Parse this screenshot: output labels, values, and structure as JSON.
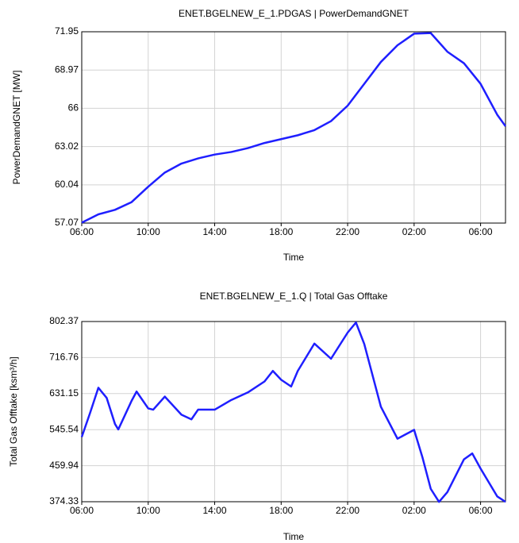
{
  "chart_data": [
    {
      "type": "line",
      "title": "ENET.BGELNEW_E_1.PDGAS | PowerDemandGNET",
      "x_label": "Time",
      "y_label": "PowerDemandGNET [MW]",
      "x": [
        0,
        1,
        2,
        3,
        4,
        5,
        6,
        7,
        8,
        9,
        10,
        11,
        12,
        13,
        14,
        15,
        16,
        17,
        18,
        19,
        20,
        21,
        22,
        23,
        24,
        25,
        25.5
      ],
      "series": [
        {
          "name": "PowerDemandGNET",
          "color": "#1f1fff",
          "values": [
            57.1,
            57.75,
            58.1,
            58.7,
            59.9,
            61.0,
            61.7,
            62.1,
            62.4,
            62.6,
            62.9,
            63.3,
            63.6,
            63.9,
            64.3,
            65.0,
            66.2,
            67.9,
            69.6,
            70.9,
            71.8,
            71.85,
            70.4,
            69.5,
            67.9,
            65.5,
            64.6
          ]
        }
      ],
      "xlim": [
        0,
        25.5
      ],
      "xticks": [
        {
          "value": 0,
          "label": "06:00"
        },
        {
          "value": 4,
          "label": "10:00"
        },
        {
          "value": 8,
          "label": "14:00"
        },
        {
          "value": 12,
          "label": "18:00"
        },
        {
          "value": 16,
          "label": "22:00"
        },
        {
          "value": 20,
          "label": "02:00"
        },
        {
          "value": 24,
          "label": "06:00"
        }
      ],
      "ylim": [
        57.07,
        71.95
      ],
      "yticks": [
        57.07,
        60.04,
        63.02,
        66,
        68.97,
        71.95
      ],
      "grid": true
    },
    {
      "type": "line",
      "title": "ENET.BGELNEW_E_1.Q | Total Gas Offtake",
      "x_label": "Time",
      "y_label": "Total Gas Offtake [ksm³/h]",
      "x": [
        0,
        0.5,
        1,
        1.5,
        2,
        2.2,
        3,
        3.3,
        4,
        4.3,
        5,
        6,
        6.6,
        7,
        8,
        9,
        10,
        11,
        11.5,
        12,
        12.6,
        13,
        14,
        15,
        16,
        16.5,
        17,
        18,
        19,
        20,
        20.5,
        21,
        21.5,
        22,
        23,
        23.5,
        24,
        25,
        25.5
      ],
      "series": [
        {
          "name": "Total Gas Offtake",
          "color": "#1f1fff",
          "values": [
            528,
            585,
            645,
            621,
            559,
            546,
            614,
            636,
            596,
            593,
            624,
            581,
            570,
            593,
            593,
            616,
            634,
            660,
            685,
            664,
            648,
            685,
            750,
            714,
            776,
            800,
            749,
            600,
            524,
            545,
            480,
            405,
            374,
            397,
            475,
            489,
            453,
            387,
            374
          ]
        }
      ],
      "xlim": [
        0,
        25.5
      ],
      "xticks": [
        {
          "value": 0,
          "label": "06:00"
        },
        {
          "value": 4,
          "label": "10:00"
        },
        {
          "value": 8,
          "label": "14:00"
        },
        {
          "value": 12,
          "label": "18:00"
        },
        {
          "value": 16,
          "label": "22:00"
        },
        {
          "value": 20,
          "label": "02:00"
        },
        {
          "value": 24,
          "label": "06:00"
        }
      ],
      "ylim": [
        374.33,
        802.37
      ],
      "yticks": [
        374.33,
        459.94,
        545.54,
        631.15,
        716.76,
        802.37
      ],
      "grid": true
    }
  ]
}
